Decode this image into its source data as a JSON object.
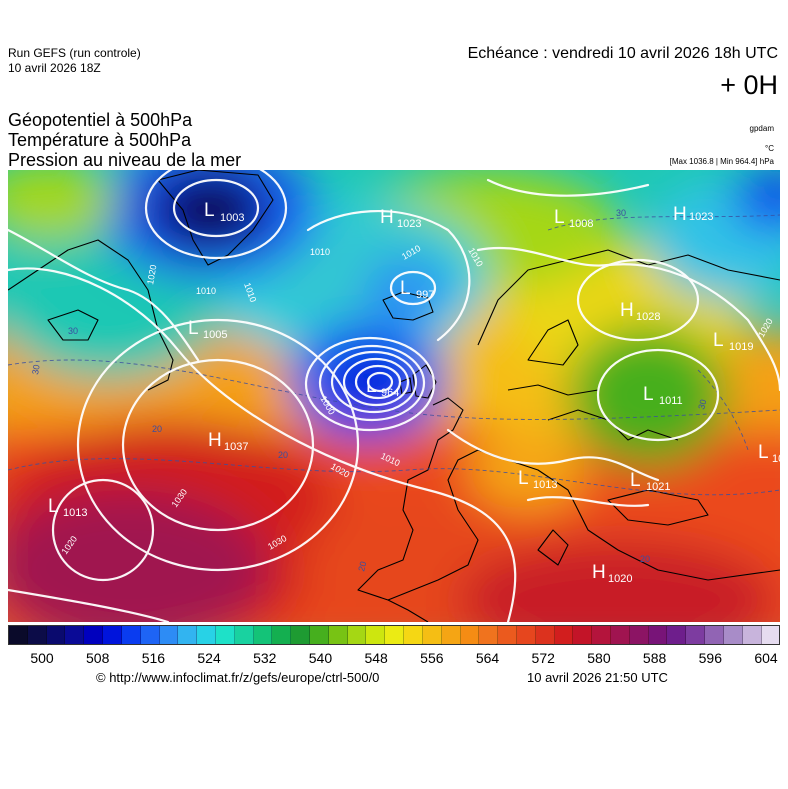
{
  "header": {
    "run_name": "Run GEFS (run controle)",
    "run_date": "10 avril 2026 18Z",
    "echeance": "Echéance : vendredi 10 avril 2026 18h UTC",
    "offset": "+ 0H"
  },
  "parameters": [
    "Géopotentiel à 500hPa",
    "Température à 500hPa",
    "Pression au niveau de la mer"
  ],
  "units": {
    "geopotential": "gpdam",
    "temperature": "°C",
    "maxmin": "[Max 1036.8 | Min 964.4] hPa"
  },
  "pressure_centers": [
    {
      "type": "L",
      "value": "1003"
    },
    {
      "type": "H",
      "value": "1023"
    },
    {
      "type": "L",
      "value": "1008"
    },
    {
      "type": "H",
      "value": "1023"
    },
    {
      "type": "L",
      "value": "997"
    },
    {
      "type": "L",
      "value": "1005"
    },
    {
      "type": "H",
      "value": "1028"
    },
    {
      "type": "L",
      "value": "1019"
    },
    {
      "type": "L",
      "value": "964"
    },
    {
      "type": "L",
      "value": "1011"
    },
    {
      "type": "H",
      "value": "1037"
    },
    {
      "type": "L",
      "value": "1013"
    },
    {
      "type": "L",
      "value": "1013"
    },
    {
      "type": "L",
      "value": "1021"
    },
    {
      "type": "H",
      "value": "1020"
    },
    {
      "type": "L",
      "value": "10"
    }
  ],
  "isobar_labels": [
    "1020",
    "1010",
    "1010",
    "1010",
    "1010",
    "1010",
    "1000",
    "1010",
    "1020",
    "1030",
    "1030",
    "1020",
    "1020"
  ],
  "temperature_labels": [
    "30",
    "30",
    "30",
    "20",
    "20",
    "20",
    "20",
    "30"
  ],
  "scale": {
    "colors": [
      "#0a0a2a",
      "#0c0c48",
      "#0a0a6e",
      "#0a0a96",
      "#0000be",
      "#0014dc",
      "#0a3cf0",
      "#1e64f5",
      "#2d8cf5",
      "#32b4f0",
      "#28d2e6",
      "#1ee1c8",
      "#19d2a0",
      "#14c378",
      "#14af50",
      "#1e9b32",
      "#46af1e",
      "#78c314",
      "#a5d714",
      "#cde60f",
      "#ebeb14",
      "#f5d714",
      "#f5be14",
      "#f5a514",
      "#f58c14",
      "#f0731e",
      "#eb5a1e",
      "#e6461e",
      "#dc321e",
      "#d21e1e",
      "#c31428",
      "#b4143c",
      "#a01450",
      "#8c1464",
      "#781478",
      "#6e1e8c",
      "#7d3ca0",
      "#9164b4",
      "#a88cc8",
      "#c8b4dc",
      "#e6dcf0"
    ],
    "ticks": [
      "500",
      "508",
      "516",
      "524",
      "532",
      "540",
      "548",
      "556",
      "564",
      "572",
      "580",
      "588",
      "596",
      "604"
    ]
  },
  "footer": {
    "credit": "© http://www.infoclimat.fr/z/gefs/europe/ctrl-500/0",
    "generated": "10 avril 2026 21:50 UTC"
  }
}
